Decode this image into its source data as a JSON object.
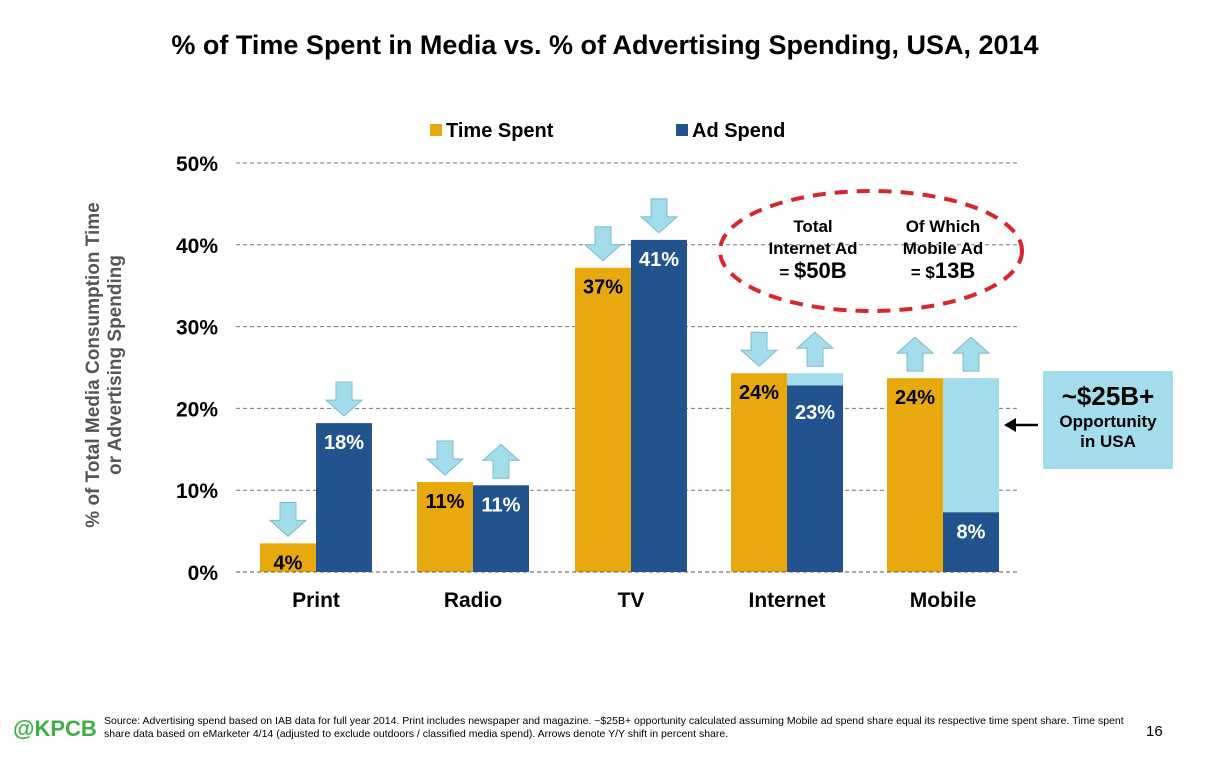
{
  "chart_data": {
    "type": "bar",
    "title": "% of Time Spent in Media vs. % of Advertising Spending, USA, 2014",
    "ylabel": "% of Total Media Consumption Time or Advertising Spending",
    "ylabel_lines": [
      "% of Total Media Consumption Time",
      "or Advertising Spending"
    ],
    "xlabel": "",
    "ylim": [
      0,
      50
    ],
    "yticks": [
      "0%",
      "10%",
      "20%",
      "30%",
      "40%",
      "50%"
    ],
    "grid": "dashed horizontal",
    "legend_position": "top",
    "categories": [
      "Print",
      "Radio",
      "TV",
      "Internet",
      "Mobile"
    ],
    "series": [
      {
        "name": "Time Spent",
        "color": "#e8a90e",
        "values": [
          4,
          11,
          37,
          24,
          24
        ],
        "plot_values": [
          3.5,
          11,
          37.2,
          24.3,
          23.7
        ],
        "labels": [
          "4%",
          "11%",
          "37%",
          "24%",
          "24%"
        ],
        "yoy_arrows": [
          "down",
          "down",
          "down",
          "down",
          "up"
        ]
      },
      {
        "name": "Ad Spend",
        "color": "#23538e",
        "values": [
          18,
          11,
          41,
          23,
          8
        ],
        "plot_values": [
          18.2,
          10.6,
          40.6,
          22.8,
          7.3
        ],
        "labels": [
          "18%",
          "11%",
          "41%",
          "23%",
          "8%"
        ],
        "yoy_arrows": [
          "down",
          "up",
          "down",
          "up",
          "up"
        ]
      }
    ],
    "gap_fill_color": "#a3dcea",
    "gap_categories": [
      "Internet",
      "Mobile"
    ]
  },
  "annotations": {
    "total_line1": "Total",
    "total_line2": "Internet Ad",
    "total_eq": "=",
    "total_value": "$50B",
    "mobile_line1": "Of Which",
    "mobile_line2": "Mobile Ad",
    "mobile_eq": "= $",
    "mobile_value": "13B",
    "opportunity_amount": "~$25B+",
    "opportunity_line1": "Opportunity",
    "opportunity_line2": "in USA",
    "oval_color": "#d9262c",
    "arrow_color": "#a3dcea"
  },
  "footer": {
    "logo": "@KPCB",
    "source": "Source: Advertising spend based on IAB data for full year 2014. Print includes newspaper and magazine. ~$25B+ opportunity calculated assuming Mobile ad spend share equal its respective time spent share. Time spent share data based on eMarketer 4/14 (adjusted to exclude outdoors / classified media spend). Arrows denote Y/Y shift in percent share.",
    "page": "16"
  }
}
